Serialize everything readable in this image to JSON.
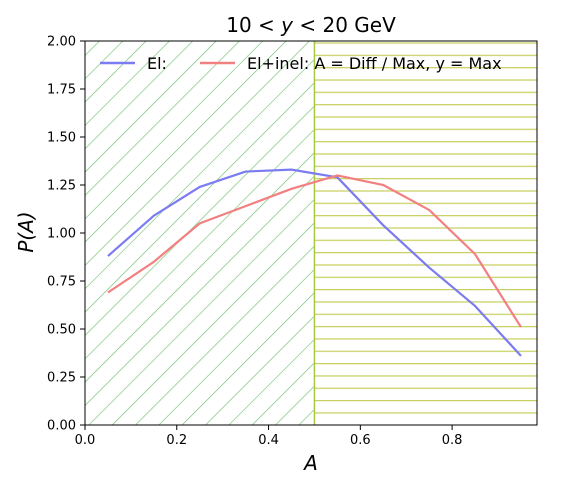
{
  "chart_data": {
    "type": "line",
    "title": "10 < y < 20 GeV",
    "xlabel": "A",
    "ylabel": "P(A)",
    "xlim": [
      0,
      0.985
    ],
    "ylim": [
      0,
      2
    ],
    "xticks": [
      "0.0",
      "0.2",
      "0.4",
      "0.6",
      "0.8"
    ],
    "xtick_values": [
      0,
      0.2,
      0.4,
      0.6,
      0.8
    ],
    "yticks": [
      "0.00",
      "0.25",
      "0.50",
      "0.75",
      "1.00",
      "1.25",
      "1.50",
      "1.75",
      "2.00"
    ],
    "ytick_values": [
      0,
      0.25,
      0.5,
      0.75,
      1.0,
      1.25,
      1.5,
      1.75,
      2.0
    ],
    "grid": false,
    "legend_placement": "top",
    "regions": [
      {
        "x_range": [
          0,
          0.5
        ],
        "hatch": "diagonal",
        "color": "#66bb66"
      },
      {
        "x_range": [
          0.5,
          0.985
        ],
        "hatch": "horizontal",
        "color": "#c8d060"
      }
    ],
    "boundary_line": {
      "x": 0.5,
      "color": "#a8c840"
    },
    "x": [
      0.05,
      0.15,
      0.25,
      0.35,
      0.45,
      0.55,
      0.65,
      0.75,
      0.85,
      0.95
    ],
    "series": [
      {
        "name": "El:",
        "color": "#7b7bf2",
        "values": [
          0.88,
          1.09,
          1.24,
          1.32,
          1.33,
          1.29,
          1.04,
          0.82,
          0.62,
          0.36
        ]
      },
      {
        "name": "El+inel: A = Diff / Max, y = Max",
        "color": "#f28080",
        "values": [
          0.69,
          0.85,
          1.05,
          1.14,
          1.23,
          1.3,
          1.25,
          1.12,
          0.89,
          0.51
        ]
      }
    ]
  }
}
